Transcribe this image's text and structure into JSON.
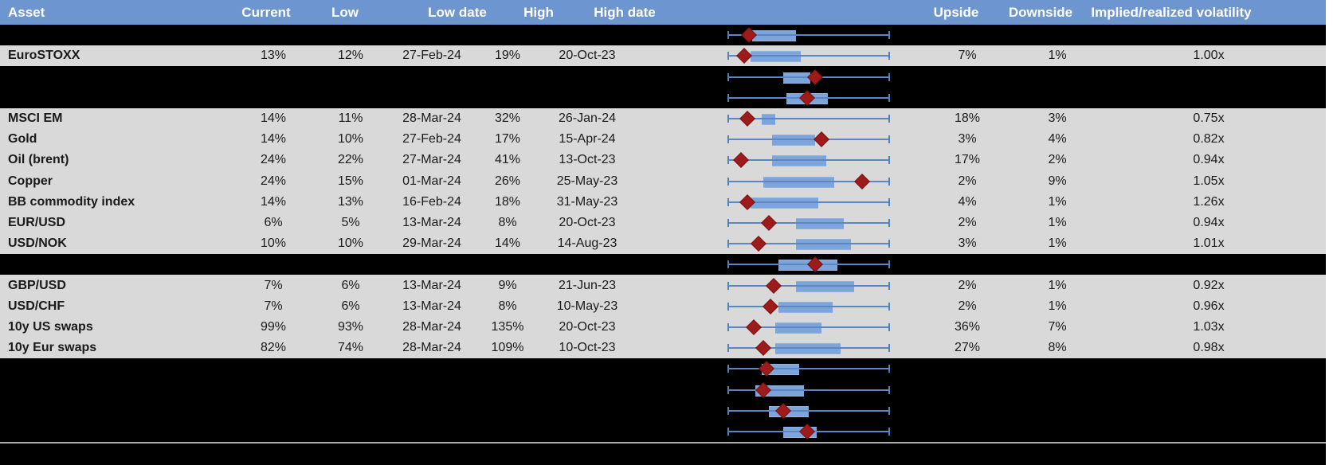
{
  "header": {
    "columns": {
      "asset": "Asset",
      "current": "Current",
      "low": "Low",
      "low_date": "Low date",
      "high": "High",
      "high_date": "High date",
      "upside": "Upside",
      "downside": "Downside",
      "implied": "Implied/realized volatility"
    }
  },
  "colors": {
    "header_bg": "#6d96d1",
    "header_text": "#ffffff",
    "data_row_bg": "#d9d9d9",
    "hidden_row_bg": "#000000",
    "box_fill": "#7da5da",
    "whisker": "#4f81bd",
    "marker": "#9e1b1b",
    "separator": "#ababab"
  },
  "chart_data": {
    "type": "table",
    "embedded_chart_type": "box-whisker-range-with-marker",
    "columns": [
      "Asset",
      "Current",
      "Low",
      "Low date",
      "High",
      "High date",
      "Upside",
      "Downside",
      "Implied/realized volatility"
    ],
    "marker_meaning": "red diamond = current position on low-high range; blue box = middle range band",
    "rows": [
      {
        "kind": "hidden",
        "box_low": 0.15,
        "box_high": 0.42,
        "marker": 0.13
      },
      {
        "kind": "data",
        "asset": "EuroSTOXX",
        "current": "13%",
        "low": "12%",
        "low_date": "27-Feb-24",
        "high": "19%",
        "high_date": "20-Oct-23",
        "upside": "7%",
        "downside": "1%",
        "implied": "1.00x",
        "box_low": 0.14,
        "box_high": 0.45,
        "marker": 0.1
      },
      {
        "kind": "hidden",
        "box_low": 0.34,
        "box_high": 0.51,
        "marker": 0.54
      },
      {
        "kind": "hidden",
        "box_low": 0.36,
        "box_high": 0.62,
        "marker": 0.49
      },
      {
        "kind": "data",
        "asset": "MSCI EM",
        "current": "14%",
        "low": "11%",
        "low_date": "28-Mar-24",
        "high": "32%",
        "high_date": "26-Jan-24",
        "upside": "18%",
        "downside": "3%",
        "implied": "0.75x",
        "box_low": 0.21,
        "box_high": 0.29,
        "marker": 0.12
      },
      {
        "kind": "data",
        "asset": "Gold",
        "current": "14%",
        "low": "10%",
        "low_date": "27-Feb-24",
        "high": "17%",
        "high_date": "15-Apr-24",
        "upside": "3%",
        "downside": "4%",
        "implied": "0.82x",
        "box_low": 0.27,
        "box_high": 0.54,
        "marker": 0.58
      },
      {
        "kind": "data",
        "asset": "Oil (brent)",
        "current": "24%",
        "low": "22%",
        "low_date": "27-Mar-24",
        "high": "41%",
        "high_date": "13-Oct-23",
        "upside": "17%",
        "downside": "2%",
        "implied": "0.94x",
        "box_low": 0.27,
        "box_high": 0.61,
        "marker": 0.08
      },
      {
        "kind": "data",
        "asset": "Copper",
        "current": "24%",
        "low": "15%",
        "low_date": "01-Mar-24",
        "high": "26%",
        "high_date": "25-May-23",
        "upside": "2%",
        "downside": "9%",
        "implied": "1.05x",
        "box_low": 0.22,
        "box_high": 0.66,
        "marker": 0.83
      },
      {
        "kind": "data",
        "asset": "BB commodity index",
        "current": "14%",
        "low": "13%",
        "low_date": "16-Feb-24",
        "high": "18%",
        "high_date": "31-May-23",
        "upside": "4%",
        "downside": "1%",
        "implied": "1.26x",
        "box_low": 0.14,
        "box_high": 0.56,
        "marker": 0.12
      },
      {
        "kind": "data",
        "asset": "EUR/USD",
        "current": "6%",
        "low": "5%",
        "low_date": "13-Mar-24",
        "high": "8%",
        "high_date": "20-Oct-23",
        "upside": "2%",
        "downside": "1%",
        "implied": "0.94x",
        "box_low": 0.42,
        "box_high": 0.72,
        "marker": 0.25
      },
      {
        "kind": "data",
        "asset": "USD/NOK",
        "current": "10%",
        "low": "10%",
        "low_date": "29-Mar-24",
        "high": "14%",
        "high_date": "14-Aug-23",
        "upside": "3%",
        "downside": "1%",
        "implied": "1.01x",
        "box_low": 0.42,
        "box_high": 0.76,
        "marker": 0.19
      },
      {
        "kind": "hidden",
        "box_low": 0.31,
        "box_high": 0.68,
        "marker": 0.54
      },
      {
        "kind": "data",
        "asset": "GBP/USD",
        "current": "7%",
        "low": "6%",
        "low_date": "13-Mar-24",
        "high": "9%",
        "high_date": "21-Jun-23",
        "upside": "2%",
        "downside": "1%",
        "implied": "0.92x",
        "box_low": 0.42,
        "box_high": 0.78,
        "marker": 0.28
      },
      {
        "kind": "data",
        "asset": "USD/CHF",
        "current": "7%",
        "low": "6%",
        "low_date": "13-Mar-24",
        "high": "8%",
        "high_date": "10-May-23",
        "upside": "2%",
        "downside": "1%",
        "implied": "0.96x",
        "box_low": 0.31,
        "box_high": 0.65,
        "marker": 0.26
      },
      {
        "kind": "data",
        "asset": "10y US swaps",
        "current": "99%",
        "low": "93%",
        "low_date": "28-Mar-24",
        "high": "135%",
        "high_date": "20-Oct-23",
        "upside": "36%",
        "downside": "7%",
        "implied": "1.03x",
        "box_low": 0.29,
        "box_high": 0.58,
        "marker": 0.16
      },
      {
        "kind": "data",
        "asset": "10y Eur swaps",
        "current": "82%",
        "low": "74%",
        "low_date": "28-Mar-24",
        "high": "109%",
        "high_date": "10-Oct-23",
        "upside": "27%",
        "downside": "8%",
        "implied": "0.98x",
        "box_low": 0.29,
        "box_high": 0.7,
        "marker": 0.22
      },
      {
        "kind": "hidden",
        "box_low": 0.21,
        "box_high": 0.44,
        "marker": 0.24
      },
      {
        "kind": "hidden",
        "box_low": 0.17,
        "box_high": 0.47,
        "marker": 0.22
      },
      {
        "kind": "hidden",
        "box_low": 0.25,
        "box_high": 0.5,
        "marker": 0.34
      },
      {
        "kind": "hidden",
        "box_low": 0.34,
        "box_high": 0.55,
        "marker": 0.49
      }
    ]
  }
}
